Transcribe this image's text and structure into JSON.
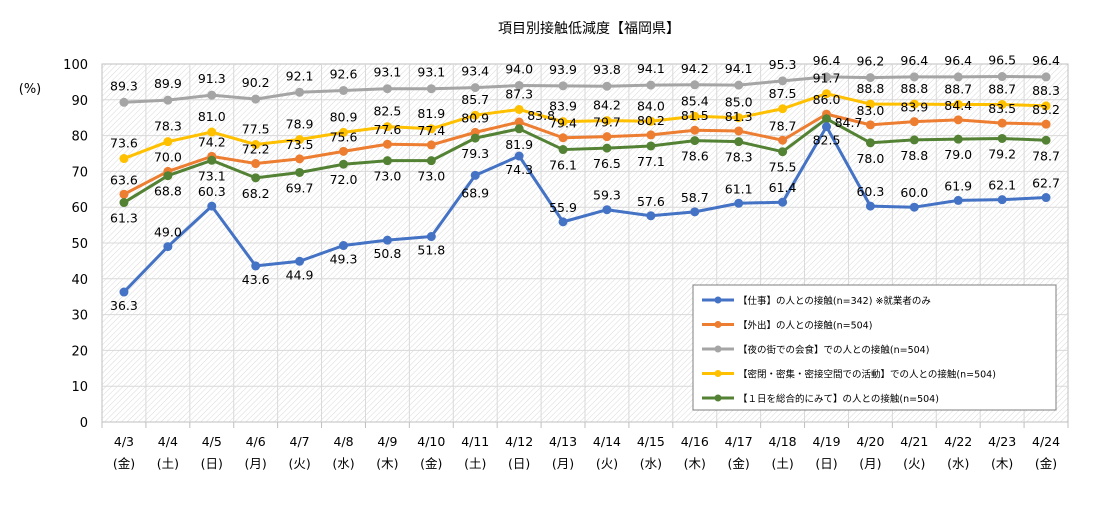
{
  "chart_data": {
    "type": "line",
    "title": "項目別接触低減度【福岡県】",
    "ylabel": "(%)",
    "xlabel": "",
    "ylim": [
      0,
      100
    ],
    "yticks": [
      0,
      10,
      20,
      30,
      40,
      50,
      60,
      70,
      80,
      90,
      100
    ],
    "grid": true,
    "legend_position": "bottom-right",
    "categories": [
      "4/3",
      "4/4",
      "4/5",
      "4/6",
      "4/7",
      "4/8",
      "4/9",
      "4/10",
      "4/11",
      "4/12",
      "4/13",
      "4/14",
      "4/15",
      "4/16",
      "4/17",
      "4/18",
      "4/19",
      "4/20",
      "4/21",
      "4/22",
      "4/23",
      "4/24"
    ],
    "weekdays": [
      "(金)",
      "(土)",
      "(日)",
      "(月)",
      "(火)",
      "(水)",
      "(木)",
      "(金)",
      "(土)",
      "(日)",
      "(月)",
      "(火)",
      "(水)",
      "(木)",
      "(金)",
      "(土)",
      "(日)",
      "(月)",
      "(火)",
      "(水)",
      "(木)",
      "(金)"
    ],
    "series": [
      {
        "name": "【仕事】の人との接触(n=342) ※就業者のみ",
        "color": "#4472C4",
        "values": [
          36.3,
          49.0,
          60.3,
          43.6,
          44.9,
          49.3,
          50.8,
          51.8,
          68.9,
          74.3,
          55.9,
          59.3,
          57.6,
          58.7,
          61.1,
          61.4,
          82.5,
          60.3,
          60.0,
          61.9,
          62.1,
          62.7
        ]
      },
      {
        "name": "【外出】の人との接触(n=504)",
        "color": "#ED7D31",
        "values": [
          63.6,
          70.0,
          74.2,
          72.2,
          73.5,
          75.6,
          77.6,
          77.4,
          80.9,
          83.8,
          79.4,
          79.7,
          80.2,
          81.5,
          81.3,
          78.7,
          86.0,
          83.0,
          83.9,
          84.4,
          83.5,
          83.2
        ]
      },
      {
        "name": "【夜の街での会食】での人との接触(n=504)",
        "color": "#A5A5A5",
        "values": [
          89.3,
          89.9,
          91.3,
          90.2,
          92.1,
          92.6,
          93.1,
          93.1,
          93.4,
          94.0,
          93.9,
          93.8,
          94.1,
          94.2,
          94.1,
          95.3,
          96.4,
          96.2,
          96.4,
          96.4,
          96.5,
          96.4
        ]
      },
      {
        "name": "【密閉・密集・密接空間での活動】での人との接触(n=504)",
        "color": "#FFC000",
        "values": [
          73.6,
          78.3,
          81.0,
          77.5,
          78.9,
          80.9,
          82.5,
          81.9,
          85.7,
          87.3,
          83.9,
          84.2,
          84.0,
          85.4,
          85.0,
          87.5,
          91.7,
          88.8,
          88.8,
          88.7,
          88.7,
          88.3
        ]
      },
      {
        "name": "【１日を総合的にみて】の人との接触(n=504)",
        "color": "#548235",
        "values": [
          61.3,
          68.8,
          73.1,
          68.2,
          69.7,
          72.0,
          73.0,
          73.0,
          79.3,
          81.9,
          76.1,
          76.5,
          77.1,
          78.6,
          78.3,
          75.5,
          84.7,
          78.0,
          78.8,
          79.0,
          79.2,
          78.7
        ]
      }
    ]
  }
}
